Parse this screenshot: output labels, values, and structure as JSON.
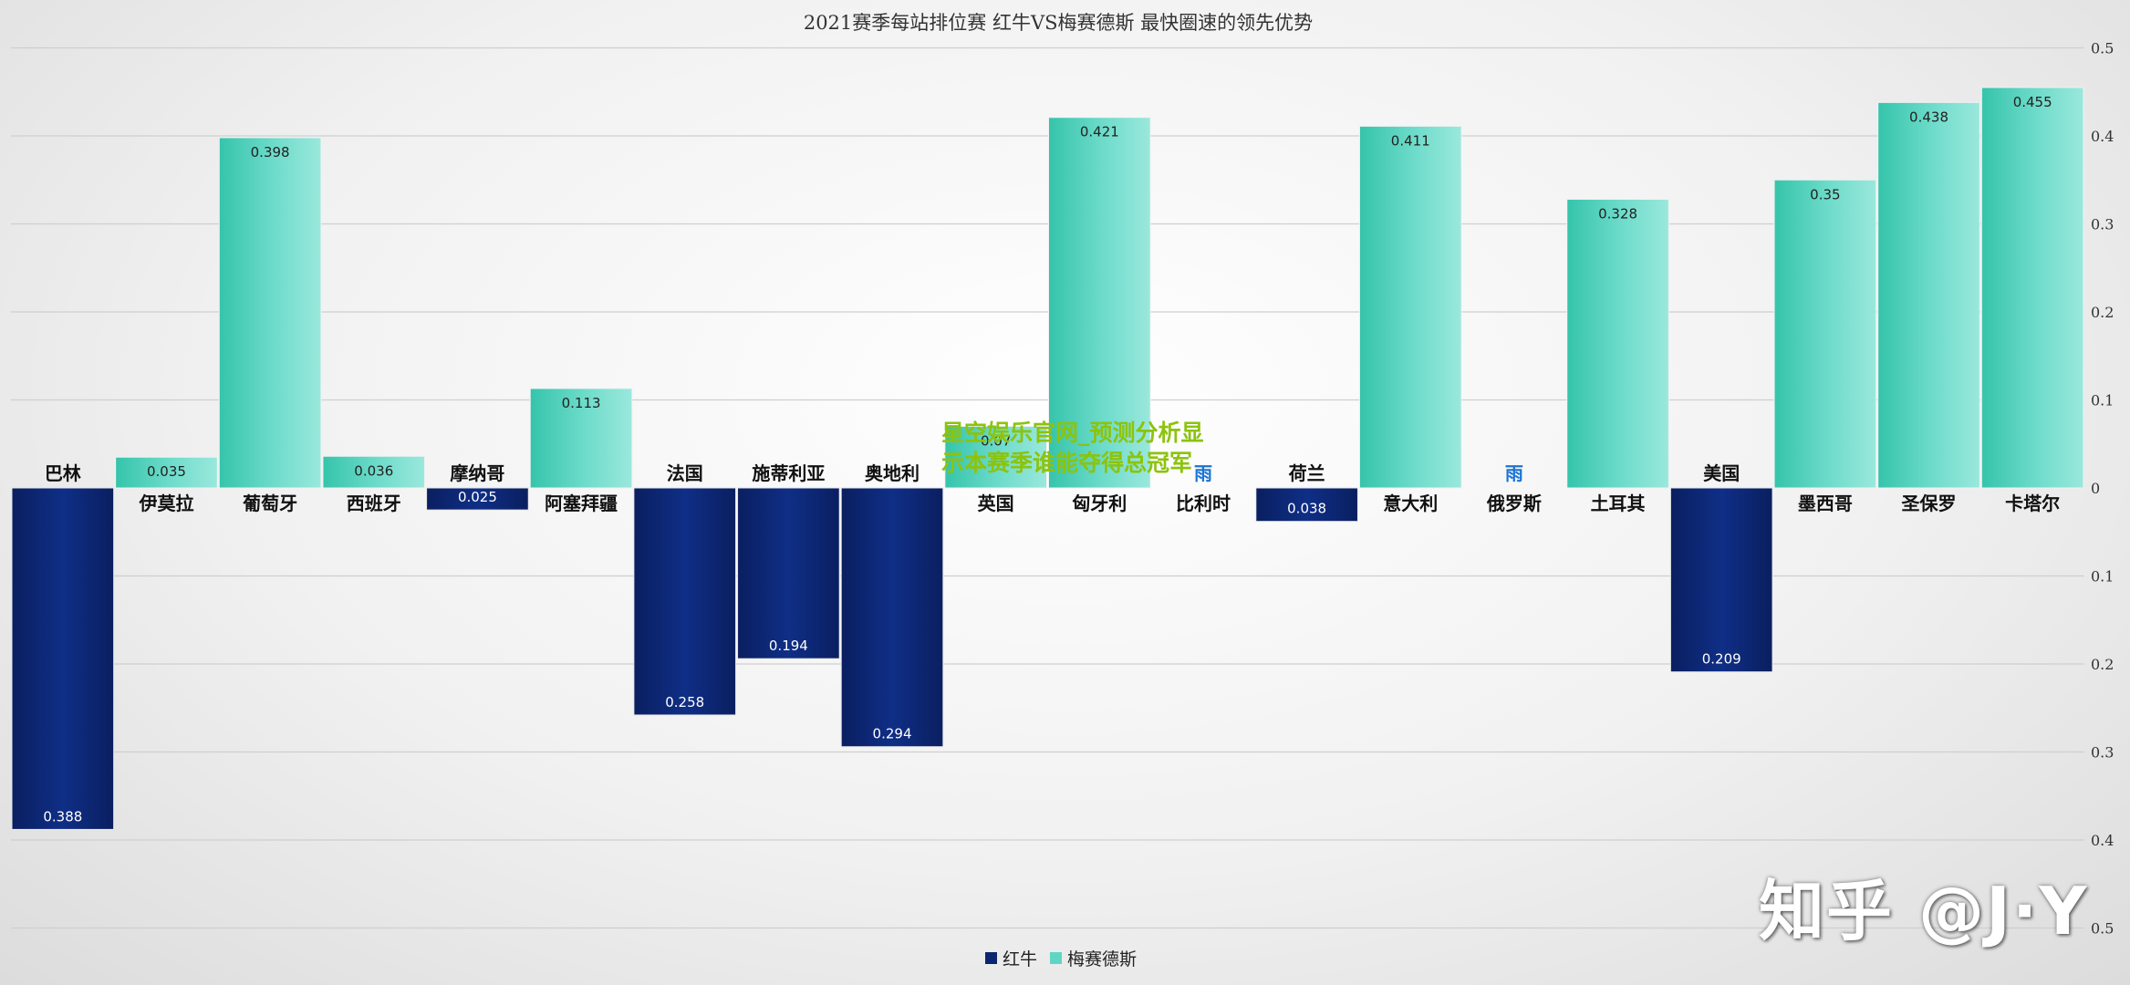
{
  "chart_data": {
    "type": "bar",
    "title": "2021赛季每站排位赛 红牛VS梅赛德斯 最快圈速的领先优势",
    "categories": [
      "巴林",
      "伊莫拉",
      "葡萄牙",
      "西班牙",
      "摩纳哥",
      "阿塞拜疆",
      "法国",
      "施蒂利亚",
      "奥地利",
      "英国",
      "匈牙利",
      "比利时",
      "荷兰",
      "意大利",
      "俄罗斯",
      "土耳其",
      "美国",
      "墨西哥",
      "圣保罗",
      "卡塔尔"
    ],
    "rain_marker": "雨",
    "series": [
      {
        "name": "红牛",
        "color": "#0b2670",
        "values": [
          0.388,
          null,
          null,
          null,
          0.025,
          null,
          0.258,
          0.194,
          0.294,
          null,
          null,
          null,
          0.038,
          null,
          null,
          null,
          0.209,
          null,
          null,
          null
        ]
      },
      {
        "name": "梅赛德斯",
        "color": "#5fd6c4",
        "values": [
          null,
          0.035,
          0.398,
          0.036,
          null,
          0.113,
          null,
          null,
          null,
          0.07,
          0.421,
          null,
          null,
          0.411,
          null,
          0.328,
          null,
          0.35,
          0.438,
          0.455
        ]
      }
    ],
    "value_labels": [
      "0.388",
      "0.035",
      "0.398",
      "0.036",
      "0.025",
      "0.113",
      "0.258",
      "0.194",
      "0.294",
      "0.07",
      "0.421",
      "",
      "0.038",
      "0.411",
      "",
      "0.328",
      "0.209",
      "0.35",
      "0.438",
      "0.455"
    ],
    "rain_flags": [
      false,
      false,
      false,
      false,
      false,
      false,
      false,
      false,
      false,
      false,
      false,
      true,
      false,
      false,
      true,
      false,
      false,
      false,
      false,
      false
    ],
    "y_ticks": [
      "0.5",
      "0.4",
      "0.3",
      "0.2",
      "0.1",
      "0",
      "0.1",
      "0.2",
      "0.3",
      "0.4",
      "0.5"
    ],
    "y_tick_values": [
      0.5,
      0.4,
      0.3,
      0.2,
      0.1,
      0,
      -0.1,
      -0.2,
      -0.3,
      -0.4,
      -0.5
    ],
    "ylim": [
      -0.5,
      0.5
    ],
    "grid": true,
    "legend_position": "bottom-center"
  },
  "overlay_text": "星空娱乐官网_预测分析显示本赛季谁能夺得总冠军",
  "watermark": "知乎 @J·Y"
}
